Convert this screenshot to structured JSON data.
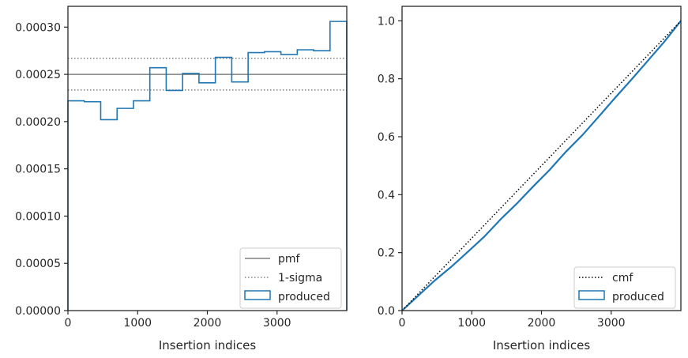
{
  "chart_data": [
    {
      "type": "step",
      "xlabel": "Insertion indices",
      "ylabel": "",
      "xlim": [
        0,
        4000
      ],
      "ylim": [
        0,
        0.000322
      ],
      "xticks": [
        0,
        1000,
        2000,
        3000
      ],
      "xtick_labels": [
        "0",
        "1000",
        "2000",
        "3000"
      ],
      "yticks": [
        0,
        5e-05,
        0.0001,
        0.00015,
        0.0002,
        0.00025,
        0.0003
      ],
      "ytick_labels": [
        "0.00000",
        "0.00005",
        "0.00010",
        "0.00015",
        "0.00020",
        "0.00025",
        "0.00030"
      ],
      "grid": false,
      "legend_position": "lower-right",
      "pmf": 0.00025,
      "sigma_upper": 0.000267,
      "sigma_lower": 0.0002335,
      "histogram": {
        "bin_edges": [
          0,
          235,
          470,
          705,
          940,
          1175,
          1410,
          1645,
          1880,
          2115,
          2350,
          2585,
          2820,
          3055,
          3290,
          3525,
          3760,
          4000
        ],
        "values": [
          0.000222,
          0.000221,
          0.000202,
          0.000214,
          0.000222,
          0.000257,
          0.000233,
          0.000251,
          0.000241,
          0.000268,
          0.000242,
          0.000273,
          0.000274,
          0.000271,
          0.000276,
          0.000275,
          0.000306
        ]
      },
      "legend": [
        {
          "label": "pmf",
          "style": "solid",
          "color": "#808080"
        },
        {
          "label": "1-sigma",
          "style": "dotted",
          "color": "#808080"
        },
        {
          "label": "produced",
          "style": "box",
          "color": "#1f77b4"
        }
      ]
    },
    {
      "type": "line",
      "xlabel": "Insertion indices",
      "ylabel": "",
      "xlim": [
        0,
        4000
      ],
      "ylim": [
        0,
        1.05
      ],
      "xticks": [
        0,
        1000,
        2000,
        3000
      ],
      "xtick_labels": [
        "0",
        "1000",
        "2000",
        "3000"
      ],
      "yticks": [
        0,
        0.2,
        0.4,
        0.6,
        0.8,
        1.0
      ],
      "ytick_labels": [
        "0.0",
        "0.2",
        "0.4",
        "0.6",
        "0.8",
        "1.0"
      ],
      "grid": false,
      "legend_position": "lower-right",
      "cmf": {
        "x": [
          0,
          4000
        ],
        "y": [
          0,
          1.0
        ]
      },
      "produced": {
        "x": [
          0,
          235,
          470,
          705,
          940,
          1175,
          1410,
          1645,
          1880,
          2115,
          2350,
          2585,
          2820,
          3055,
          3290,
          3525,
          3760,
          4000
        ],
        "y": [
          0,
          0.052,
          0.104,
          0.151,
          0.202,
          0.254,
          0.314,
          0.369,
          0.428,
          0.485,
          0.548,
          0.605,
          0.669,
          0.734,
          0.797,
          0.862,
          0.927,
          1.0
        ]
      },
      "legend": [
        {
          "label": "cmf",
          "style": "dotted",
          "color": "#000000"
        },
        {
          "label": "produced",
          "style": "box",
          "color": "#1f77b4"
        }
      ]
    }
  ]
}
